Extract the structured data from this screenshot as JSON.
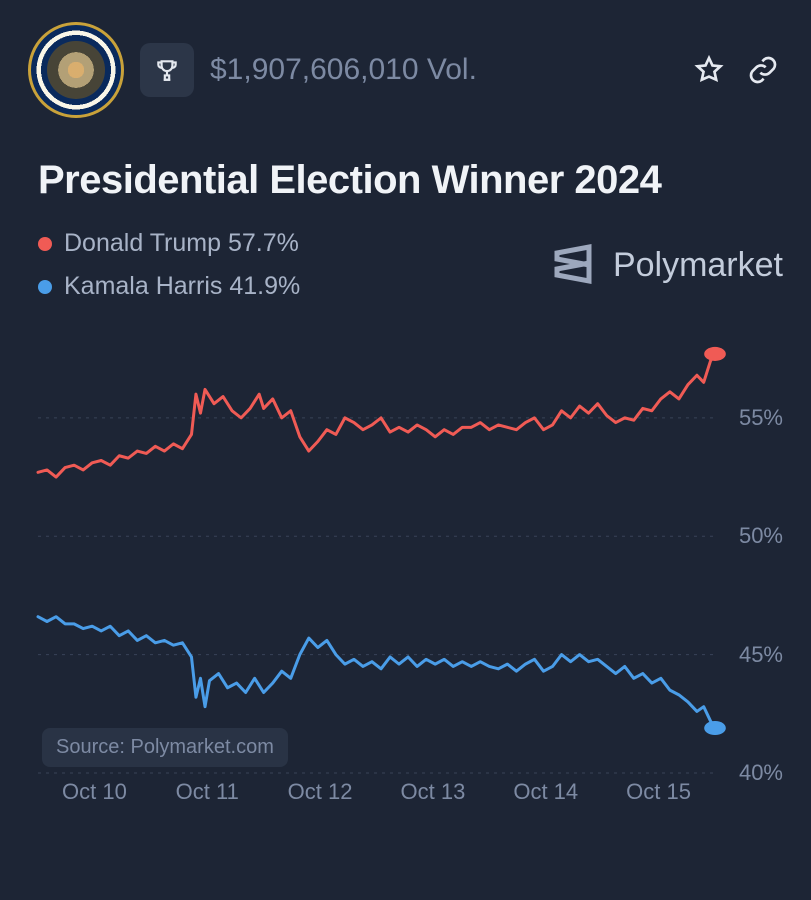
{
  "header": {
    "volume": "$1,907,606,010 Vol."
  },
  "title": "Presidential Election Winner 2024",
  "brand": "Polymarket",
  "legend": {
    "series1": {
      "label": "Donald Trump 57.7%",
      "color": "#f05b55"
    },
    "series2": {
      "label": "Kamala Harris 41.9%",
      "color": "#4a9de8"
    }
  },
  "source_label": "Source: Polymarket.com",
  "chart": {
    "type": "line",
    "background_color": "#1d2535",
    "grid_color": "#394358",
    "ylim": [
      40,
      58.5
    ],
    "yticks": [
      40,
      45,
      50,
      55
    ],
    "ytick_labels": [
      "40%",
      "45%",
      "50%",
      "55%"
    ],
    "x_domain": [
      0,
      6
    ],
    "xticks": [
      0.5,
      1.5,
      2.5,
      3.5,
      4.5,
      5.5
    ],
    "xtick_labels": [
      "Oct 10",
      "Oct 11",
      "Oct 12",
      "Oct 13",
      "Oct 14",
      "Oct 15"
    ],
    "line_width": 3,
    "end_marker_radius": 7,
    "label_fontsize": 22,
    "label_color": "#7d8aa3",
    "series": [
      {
        "name": "Donald Trump",
        "color": "#f05b55",
        "data": [
          [
            0.0,
            52.7
          ],
          [
            0.08,
            52.8
          ],
          [
            0.16,
            52.5
          ],
          [
            0.24,
            52.9
          ],
          [
            0.32,
            53.0
          ],
          [
            0.4,
            52.8
          ],
          [
            0.48,
            53.1
          ],
          [
            0.56,
            53.2
          ],
          [
            0.64,
            53.0
          ],
          [
            0.72,
            53.4
          ],
          [
            0.8,
            53.3
          ],
          [
            0.88,
            53.6
          ],
          [
            0.96,
            53.5
          ],
          [
            1.04,
            53.8
          ],
          [
            1.12,
            53.6
          ],
          [
            1.2,
            53.9
          ],
          [
            1.28,
            53.7
          ],
          [
            1.36,
            54.3
          ],
          [
            1.4,
            56.0
          ],
          [
            1.44,
            55.2
          ],
          [
            1.48,
            56.2
          ],
          [
            1.56,
            55.6
          ],
          [
            1.64,
            55.9
          ],
          [
            1.72,
            55.3
          ],
          [
            1.8,
            55.0
          ],
          [
            1.88,
            55.4
          ],
          [
            1.96,
            56.0
          ],
          [
            2.0,
            55.4
          ],
          [
            2.08,
            55.8
          ],
          [
            2.16,
            55.0
          ],
          [
            2.24,
            55.3
          ],
          [
            2.32,
            54.2
          ],
          [
            2.4,
            53.6
          ],
          [
            2.48,
            54.0
          ],
          [
            2.56,
            54.5
          ],
          [
            2.64,
            54.3
          ],
          [
            2.72,
            55.0
          ],
          [
            2.8,
            54.8
          ],
          [
            2.88,
            54.5
          ],
          [
            2.96,
            54.7
          ],
          [
            3.04,
            55.0
          ],
          [
            3.12,
            54.4
          ],
          [
            3.2,
            54.6
          ],
          [
            3.28,
            54.4
          ],
          [
            3.36,
            54.7
          ],
          [
            3.44,
            54.5
          ],
          [
            3.52,
            54.2
          ],
          [
            3.6,
            54.5
          ],
          [
            3.68,
            54.3
          ],
          [
            3.76,
            54.6
          ],
          [
            3.84,
            54.6
          ],
          [
            3.92,
            54.8
          ],
          [
            4.0,
            54.5
          ],
          [
            4.08,
            54.7
          ],
          [
            4.16,
            54.6
          ],
          [
            4.24,
            54.5
          ],
          [
            4.32,
            54.8
          ],
          [
            4.4,
            55.0
          ],
          [
            4.48,
            54.5
          ],
          [
            4.56,
            54.7
          ],
          [
            4.64,
            55.3
          ],
          [
            4.72,
            55.0
          ],
          [
            4.8,
            55.5
          ],
          [
            4.88,
            55.2
          ],
          [
            4.96,
            55.6
          ],
          [
            5.04,
            55.1
          ],
          [
            5.12,
            54.8
          ],
          [
            5.2,
            55.0
          ],
          [
            5.28,
            54.9
          ],
          [
            5.36,
            55.4
          ],
          [
            5.44,
            55.3
          ],
          [
            5.52,
            55.8
          ],
          [
            5.6,
            56.1
          ],
          [
            5.68,
            55.8
          ],
          [
            5.76,
            56.4
          ],
          [
            5.84,
            56.8
          ],
          [
            5.9,
            56.5
          ],
          [
            5.96,
            57.4
          ],
          [
            6.0,
            57.7
          ]
        ]
      },
      {
        "name": "Kamala Harris",
        "color": "#4a9de8",
        "data": [
          [
            0.0,
            46.6
          ],
          [
            0.08,
            46.4
          ],
          [
            0.16,
            46.6
          ],
          [
            0.24,
            46.3
          ],
          [
            0.32,
            46.3
          ],
          [
            0.4,
            46.1
          ],
          [
            0.48,
            46.2
          ],
          [
            0.56,
            46.0
          ],
          [
            0.64,
            46.2
          ],
          [
            0.72,
            45.8
          ],
          [
            0.8,
            46.0
          ],
          [
            0.88,
            45.6
          ],
          [
            0.96,
            45.8
          ],
          [
            1.04,
            45.5
          ],
          [
            1.12,
            45.6
          ],
          [
            1.2,
            45.4
          ],
          [
            1.28,
            45.5
          ],
          [
            1.36,
            44.9
          ],
          [
            1.4,
            43.2
          ],
          [
            1.44,
            44.0
          ],
          [
            1.48,
            42.8
          ],
          [
            1.52,
            43.9
          ],
          [
            1.6,
            44.2
          ],
          [
            1.68,
            43.6
          ],
          [
            1.76,
            43.8
          ],
          [
            1.84,
            43.4
          ],
          [
            1.92,
            44.0
          ],
          [
            2.0,
            43.4
          ],
          [
            2.08,
            43.8
          ],
          [
            2.16,
            44.3
          ],
          [
            2.24,
            44.0
          ],
          [
            2.32,
            45.0
          ],
          [
            2.4,
            45.7
          ],
          [
            2.48,
            45.3
          ],
          [
            2.56,
            45.6
          ],
          [
            2.64,
            45.0
          ],
          [
            2.72,
            44.6
          ],
          [
            2.8,
            44.8
          ],
          [
            2.88,
            44.5
          ],
          [
            2.96,
            44.7
          ],
          [
            3.04,
            44.4
          ],
          [
            3.12,
            44.9
          ],
          [
            3.2,
            44.6
          ],
          [
            3.28,
            44.9
          ],
          [
            3.36,
            44.5
          ],
          [
            3.44,
            44.8
          ],
          [
            3.52,
            44.6
          ],
          [
            3.6,
            44.8
          ],
          [
            3.68,
            44.5
          ],
          [
            3.76,
            44.7
          ],
          [
            3.84,
            44.5
          ],
          [
            3.92,
            44.7
          ],
          [
            4.0,
            44.5
          ],
          [
            4.08,
            44.4
          ],
          [
            4.16,
            44.6
          ],
          [
            4.24,
            44.3
          ],
          [
            4.32,
            44.6
          ],
          [
            4.4,
            44.8
          ],
          [
            4.48,
            44.3
          ],
          [
            4.56,
            44.5
          ],
          [
            4.64,
            45.0
          ],
          [
            4.72,
            44.7
          ],
          [
            4.8,
            45.0
          ],
          [
            4.88,
            44.7
          ],
          [
            4.96,
            44.8
          ],
          [
            5.04,
            44.5
          ],
          [
            5.12,
            44.2
          ],
          [
            5.2,
            44.5
          ],
          [
            5.28,
            44.0
          ],
          [
            5.36,
            44.2
          ],
          [
            5.44,
            43.8
          ],
          [
            5.52,
            44.0
          ],
          [
            5.6,
            43.5
          ],
          [
            5.68,
            43.3
          ],
          [
            5.76,
            43.0
          ],
          [
            5.84,
            42.6
          ],
          [
            5.9,
            42.8
          ],
          [
            5.96,
            42.2
          ],
          [
            6.0,
            41.9
          ]
        ]
      }
    ]
  }
}
